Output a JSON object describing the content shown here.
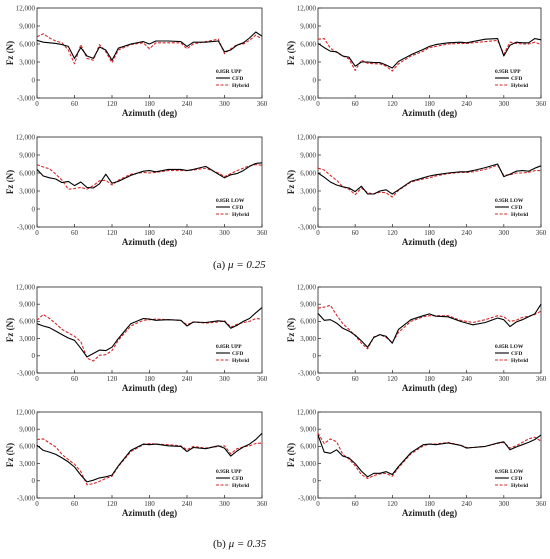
{
  "figure": {
    "captions": [
      {
        "label": "(a)",
        "mu_text": "μ = 0.25"
      },
      {
        "label": "(b)",
        "mu_text": "μ = 0.35"
      }
    ]
  },
  "chart_data": [
    {
      "type": "line",
      "panel_label": "0.85R UPP",
      "ylabel": "Fz (N)",
      "xlabel": "Azimuth (deg)",
      "xlim": [
        0,
        360
      ],
      "ylim": [
        -3000,
        12000
      ],
      "xticks": [
        0,
        60,
        120,
        180,
        240,
        300,
        360
      ],
      "yticks": [
        -3000,
        0,
        3000,
        6000,
        9000,
        12000
      ],
      "ytick_labels": [
        "-3,000",
        "0",
        "3,000",
        "6,000",
        "9,000",
        "12,000"
      ],
      "legend_loc": "bottom-right",
      "x": [
        0,
        10,
        20,
        30,
        40,
        50,
        60,
        70,
        80,
        90,
        100,
        110,
        120,
        130,
        150,
        170,
        180,
        190,
        210,
        230,
        240,
        250,
        270,
        290,
        300,
        310,
        320,
        330,
        340,
        350,
        360
      ],
      "series": [
        {
          "name": "CFD",
          "color": "#000000",
          "style": "solid",
          "values": [
            6600,
            6300,
            6200,
            6100,
            5900,
            5600,
            3600,
            5400,
            4000,
            3600,
            5500,
            5000,
            3300,
            5300,
            6000,
            6400,
            6000,
            6500,
            6500,
            6400,
            5600,
            6300,
            6300,
            6500,
            4700,
            5000,
            5800,
            6200,
            7000,
            8000,
            7300
          ]
        },
        {
          "name": "Hybrid",
          "color": "#d62728",
          "style": "dashed",
          "values": [
            7200,
            7700,
            7000,
            6500,
            6200,
            5000,
            2700,
            5900,
            3600,
            3300,
            5900,
            4700,
            2900,
            5000,
            5900,
            6200,
            5200,
            6200,
            6200,
            6200,
            5200,
            6000,
            6400,
            6800,
            4400,
            5200,
            5900,
            6000,
            6600,
            7500,
            6800
          ]
        }
      ]
    },
    {
      "type": "line",
      "panel_label": "0.95R UPP",
      "ylabel": "Fz (N)",
      "xlabel": "Azimuth (deg)",
      "xlim": [
        0,
        360
      ],
      "ylim": [
        -3000,
        12000
      ],
      "xticks": [
        0,
        60,
        120,
        180,
        240,
        300,
        360
      ],
      "yticks": [
        -3000,
        0,
        3000,
        6000,
        9000,
        12000
      ],
      "ytick_labels": [
        "-3,000",
        "0",
        "3,000",
        "6,000",
        "9,000",
        "12,000"
      ],
      "legend_loc": "bottom-right",
      "x": [
        0,
        10,
        20,
        30,
        40,
        50,
        60,
        70,
        80,
        90,
        100,
        110,
        120,
        130,
        150,
        170,
        180,
        190,
        210,
        230,
        240,
        250,
        270,
        290,
        300,
        310,
        320,
        330,
        340,
        350,
        360
      ],
      "series": [
        {
          "name": "CFD",
          "color": "#000000",
          "style": "solid",
          "values": [
            6100,
            5400,
            4800,
            4700,
            4000,
            3800,
            2300,
            3000,
            3000,
            2900,
            2900,
            2500,
            2000,
            3100,
            4200,
            5100,
            5600,
            5900,
            6200,
            6300,
            6200,
            6400,
            6800,
            6900,
            4000,
            5800,
            6300,
            6200,
            6200,
            6900,
            6700
          ]
        },
        {
          "name": "Hybrid",
          "color": "#d62728",
          "style": "dashed",
          "values": [
            6800,
            6900,
            5300,
            4600,
            4000,
            3500,
            1600,
            3300,
            2800,
            2700,
            2700,
            2300,
            1500,
            2700,
            4000,
            4800,
            5400,
            5600,
            6000,
            6100,
            6100,
            6200,
            6400,
            6600,
            4300,
            6300,
            6100,
            6000,
            6000,
            6300,
            5900
          ]
        }
      ]
    },
    {
      "type": "line",
      "panel_label": "0.85R LOW",
      "ylabel": "Fz (N)",
      "xlabel": "Azimuth (deg)",
      "xlim": [
        0,
        360
      ],
      "ylim": [
        -3000,
        12000
      ],
      "xticks": [
        0,
        60,
        120,
        180,
        240,
        300,
        360
      ],
      "yticks": [
        -3000,
        0,
        3000,
        6000,
        9000,
        12000
      ],
      "ytick_labels": [
        "-3,000",
        "0",
        "3,000",
        "6,000",
        "9,000",
        "12,000"
      ],
      "legend_loc": "bottom-right",
      "x": [
        0,
        10,
        20,
        30,
        40,
        50,
        60,
        70,
        80,
        90,
        100,
        110,
        120,
        130,
        150,
        170,
        180,
        190,
        210,
        230,
        240,
        250,
        270,
        290,
        300,
        310,
        320,
        330,
        340,
        350,
        360
      ],
      "series": [
        {
          "name": "CFD",
          "color": "#000000",
          "style": "solid",
          "values": [
            6600,
            5500,
            5200,
            5000,
            4400,
            4600,
            3900,
            4500,
            3600,
            3500,
            4200,
            5800,
            4300,
            4600,
            5600,
            6300,
            6400,
            6200,
            6600,
            6600,
            6400,
            6600,
            7100,
            5800,
            5200,
            5700,
            5900,
            6400,
            7100,
            7600,
            7700
          ]
        },
        {
          "name": "Hybrid",
          "color": "#d62728",
          "style": "dashed",
          "values": [
            7400,
            7000,
            6700,
            5800,
            4800,
            3300,
            3400,
            3600,
            3300,
            3900,
            4700,
            4800,
            4000,
            4800,
            5800,
            6100,
            6000,
            6100,
            6400,
            6400,
            6400,
            6500,
            6800,
            6000,
            5400,
            5900,
            6400,
            6800,
            7200,
            7400,
            7300
          ]
        }
      ]
    },
    {
      "type": "line",
      "panel_label": "0.95R LOW",
      "ylabel": "Fz (N)",
      "xlabel": "Azimuth (deg)",
      "xlim": [
        0,
        360
      ],
      "ylim": [
        -3000,
        12000
      ],
      "xticks": [
        0,
        60,
        120,
        180,
        240,
        300,
        360
      ],
      "yticks": [
        -3000,
        0,
        3000,
        6000,
        9000,
        12000
      ],
      "ytick_labels": [
        "-3,000",
        "0",
        "3,000",
        "6,000",
        "9,000",
        "12,000"
      ],
      "legend_loc": "bottom-right",
      "x": [
        0,
        10,
        20,
        30,
        40,
        50,
        60,
        70,
        80,
        90,
        100,
        110,
        120,
        130,
        150,
        170,
        180,
        190,
        210,
        230,
        240,
        250,
        270,
        290,
        300,
        310,
        320,
        330,
        340,
        350,
        360
      ],
      "series": [
        {
          "name": "CFD",
          "color": "#000000",
          "style": "solid",
          "values": [
            6000,
            5300,
            4500,
            4000,
            3700,
            3500,
            2900,
            3800,
            2500,
            2500,
            3000,
            3200,
            2500,
            3200,
            4600,
            5200,
            5500,
            5700,
            6000,
            6200,
            6200,
            6400,
            6900,
            7500,
            5400,
            5800,
            6300,
            6400,
            6300,
            6800,
            7200
          ]
        },
        {
          "name": "Hybrid",
          "color": "#d62728",
          "style": "dashed",
          "values": [
            6800,
            6500,
            5600,
            4800,
            3700,
            3300,
            2400,
            3500,
            2700,
            2500,
            2800,
            2700,
            2000,
            3100,
            4500,
            5000,
            5200,
            5500,
            5900,
            6100,
            6100,
            6200,
            6600,
            7300,
            5600,
            5700,
            6000,
            6000,
            6100,
            6400,
            6400
          ]
        }
      ]
    },
    {
      "type": "line",
      "panel_label": "0.85R UPP",
      "ylabel": "Fz (N)",
      "xlabel": "Azimuth (deg)",
      "xlim": [
        0,
        360
      ],
      "ylim": [
        -3000,
        12000
      ],
      "xticks": [
        0,
        60,
        120,
        180,
        240,
        300,
        360
      ],
      "yticks": [
        -3000,
        0,
        3000,
        6000,
        9000,
        12000
      ],
      "ytick_labels": [
        "-3,000",
        "0",
        "3,000",
        "6,000",
        "9,000",
        "12,000"
      ],
      "legend_loc": "bottom-right",
      "x": [
        0,
        10,
        20,
        30,
        40,
        50,
        60,
        70,
        80,
        90,
        100,
        110,
        120,
        130,
        150,
        170,
        180,
        190,
        210,
        230,
        240,
        250,
        270,
        290,
        300,
        310,
        320,
        330,
        340,
        350,
        360
      ],
      "series": [
        {
          "name": "CFD",
          "color": "#000000",
          "style": "solid",
          "values": [
            5600,
            5200,
            4900,
            4300,
            3700,
            3100,
            2700,
            1300,
            -200,
            400,
            1000,
            900,
            1500,
            3000,
            5600,
            6500,
            6400,
            6200,
            6300,
            6200,
            5200,
            5900,
            5800,
            6100,
            6000,
            4800,
            5300,
            6000,
            6500,
            7500,
            8400
          ]
        },
        {
          "name": "Hybrid",
          "color": "#d62728",
          "style": "dashed",
          "values": [
            6200,
            7200,
            6500,
            5600,
            4600,
            4000,
            3400,
            2500,
            -400,
            -900,
            100,
            200,
            900,
            2700,
            5200,
            6200,
            6300,
            6400,
            6300,
            6200,
            5400,
            5900,
            5700,
            5900,
            6100,
            5000,
            5500,
            5800,
            6000,
            6500,
            6400
          ]
        }
      ]
    },
    {
      "type": "line",
      "panel_label": "0.85R LOW",
      "ylabel": "Fz (N)",
      "xlabel": "Azimuth (deg)",
      "xlim": [
        0,
        360
      ],
      "ylim": [
        -3000,
        12000
      ],
      "xticks": [
        0,
        60,
        120,
        180,
        240,
        300,
        360
      ],
      "yticks": [
        -3000,
        0,
        3000,
        6000,
        9000,
        12000
      ],
      "ytick_labels": [
        "-3,000",
        "0",
        "3,000",
        "6,000",
        "9,000",
        "12,000"
      ],
      "legend_loc": "bottom-right",
      "x": [
        0,
        10,
        20,
        30,
        40,
        50,
        60,
        70,
        80,
        90,
        100,
        110,
        120,
        130,
        150,
        170,
        180,
        190,
        210,
        230,
        240,
        250,
        270,
        290,
        300,
        310,
        320,
        330,
        340,
        350,
        360
      ],
      "series": [
        {
          "name": "CFD",
          "color": "#000000",
          "style": "solid",
          "values": [
            7400,
            6200,
            6300,
            5700,
            4800,
            4300,
            3600,
            2600,
            1500,
            3200,
            3700,
            3400,
            2200,
            4600,
            6300,
            7000,
            7300,
            6900,
            6800,
            6000,
            5700,
            5400,
            5800,
            6600,
            6300,
            5100,
            5900,
            6300,
            6800,
            7300,
            9000
          ]
        },
        {
          "name": "Hybrid",
          "color": "#d62728",
          "style": "dashed",
          "values": [
            8300,
            8500,
            8800,
            7100,
            5600,
            4600,
            3500,
            2200,
            1200,
            3300,
            3700,
            3200,
            2300,
            4100,
            6000,
            6800,
            7000,
            7000,
            7000,
            6200,
            6000,
            5800,
            6300,
            7000,
            6800,
            6000,
            6200,
            6700,
            6900,
            7200,
            7800
          ]
        }
      ]
    },
    {
      "type": "line",
      "panel_label": "0.95R UPP",
      "ylabel": "Fz (N)",
      "xlabel": "Azimuth (deg)",
      "xlim": [
        0,
        360
      ],
      "ylim": [
        -3000,
        12000
      ],
      "xticks": [
        0,
        60,
        120,
        180,
        240,
        300,
        360
      ],
      "yticks": [
        -3000,
        0,
        3000,
        6000,
        9000,
        12000
      ],
      "ytick_labels": [
        "-3,000",
        "0",
        "3,000",
        "6,000",
        "9,000",
        "12,000"
      ],
      "legend_loc": "bottom-right",
      "x": [
        0,
        10,
        20,
        30,
        40,
        50,
        60,
        70,
        80,
        90,
        100,
        110,
        120,
        130,
        150,
        170,
        180,
        190,
        210,
        230,
        240,
        250,
        270,
        290,
        300,
        310,
        320,
        330,
        340,
        350,
        360
      ],
      "series": [
        {
          "name": "CFD",
          "color": "#000000",
          "style": "solid",
          "values": [
            6200,
            5300,
            5000,
            4600,
            4000,
            3300,
            2400,
            1000,
            -200,
            100,
            500,
            700,
            1000,
            2600,
            5300,
            6400,
            6300,
            6400,
            6100,
            6000,
            5100,
            5800,
            5600,
            6100,
            5700,
            4300,
            5200,
            5900,
            6400,
            7200,
            8300
          ]
        },
        {
          "name": "Hybrid",
          "color": "#d62728",
          "style": "dashed",
          "values": [
            7200,
            7300,
            6600,
            5900,
            4600,
            3700,
            2900,
            1600,
            -700,
            -500,
            -100,
            400,
            800,
            2500,
            5100,
            6300,
            6500,
            6400,
            6300,
            6100,
            5400,
            6000,
            5700,
            6000,
            6100,
            4700,
            5600,
            5900,
            6100,
            6500,
            6600
          ]
        }
      ]
    },
    {
      "type": "line",
      "panel_label": "0.95R LOW",
      "ylabel": "Fz (N)",
      "xlabel": "Azimuth (deg)",
      "xlim": [
        0,
        360
      ],
      "ylim": [
        -3000,
        12000
      ],
      "xticks": [
        0,
        60,
        120,
        180,
        240,
        300,
        360
      ],
      "yticks": [
        -3000,
        0,
        3000,
        6000,
        9000,
        12000
      ],
      "ytick_labels": [
        "-3,000",
        "0",
        "3,000",
        "6,000",
        "9,000",
        "12,000"
      ],
      "legend_loc": "bottom-right",
      "x": [
        0,
        10,
        20,
        30,
        40,
        50,
        60,
        70,
        80,
        90,
        100,
        110,
        120,
        130,
        150,
        170,
        180,
        190,
        210,
        230,
        240,
        250,
        270,
        290,
        300,
        310,
        320,
        330,
        340,
        350,
        360
      ],
      "series": [
        {
          "name": "CFD",
          "color": "#000000",
          "style": "solid",
          "values": [
            8000,
            5000,
            4800,
            5400,
            4300,
            4000,
            3000,
            1700,
            700,
            1300,
            1300,
            1600,
            1100,
            2500,
            4900,
            6300,
            6400,
            6300,
            6600,
            6200,
            5700,
            5800,
            6000,
            6600,
            6800,
            5400,
            5900,
            6300,
            6700,
            7200,
            8000
          ]
        },
        {
          "name": "Hybrid",
          "color": "#d62728",
          "style": "dashed",
          "values": [
            8300,
            6500,
            7300,
            6800,
            4600,
            3800,
            2600,
            1100,
            400,
            900,
            1200,
            1300,
            800,
            2300,
            4700,
            6100,
            6400,
            6400,
            6700,
            6200,
            5800,
            5800,
            6000,
            6500,
            6700,
            5700,
            6100,
            6700,
            7300,
            7600,
            6900
          ]
        }
      ]
    }
  ]
}
